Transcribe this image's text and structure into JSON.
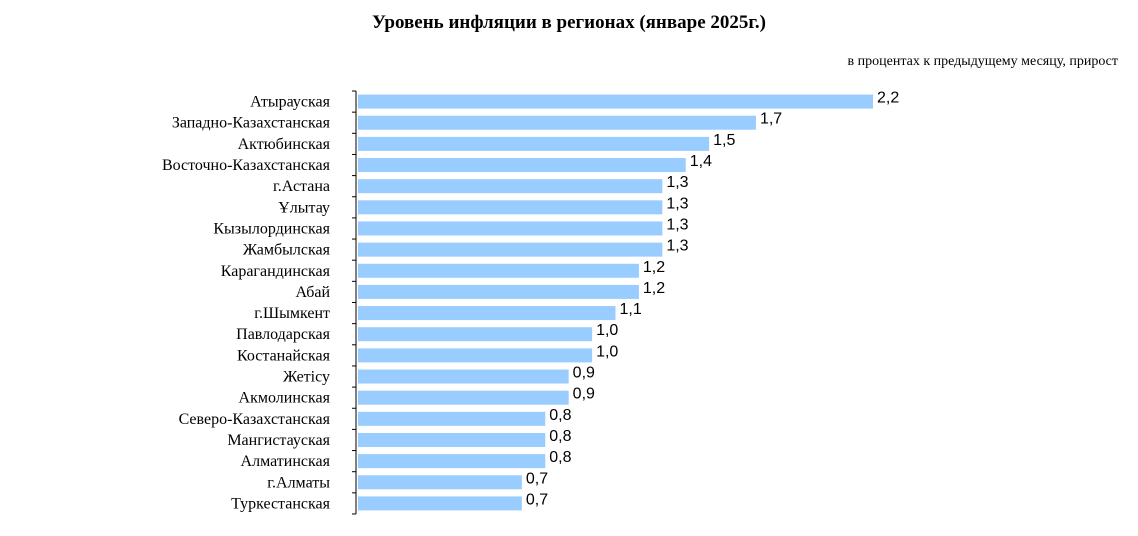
{
  "chart_data": {
    "type": "bar",
    "orientation": "horizontal",
    "title": "Уровень инфляции в регионах (январе 2025г.)",
    "subtitle": "в процентах к предыдущему месяцу, прирост",
    "categories": [
      "Атырауская",
      "Западно-Казахстанская",
      "Актюбинская",
      "Восточно-Казахстанская",
      "г.Астана",
      "Ұлытау",
      "Кызылординская",
      "Жамбылская",
      "Карагандинская",
      "Абай",
      "г.Шымкент",
      "Павлодарская",
      "Костанайская",
      "Жетісу",
      "Акмолинская",
      "Северо-Казахстанская",
      "Мангистауская",
      "Алматинская",
      "г.Алматы",
      "Туркестанская"
    ],
    "values": [
      2.2,
      1.7,
      1.5,
      1.4,
      1.3,
      1.3,
      1.3,
      1.3,
      1.2,
      1.2,
      1.1,
      1.0,
      1.0,
      0.9,
      0.9,
      0.8,
      0.8,
      0.8,
      0.7,
      0.7
    ],
    "value_labels": [
      "2,2",
      "1,7",
      "1,5",
      "1,4",
      "1,3",
      "1,3",
      "1,3",
      "1,3",
      "1,2",
      "1,2",
      "1,1",
      "1,0",
      "1,0",
      "0,9",
      "0,9",
      "0,8",
      "0,8",
      "0,8",
      "0,7",
      "0,7"
    ],
    "bar_color": "#99CCFF",
    "xlim": [
      0,
      2.2
    ],
    "grid": false,
    "legend": "none"
  }
}
